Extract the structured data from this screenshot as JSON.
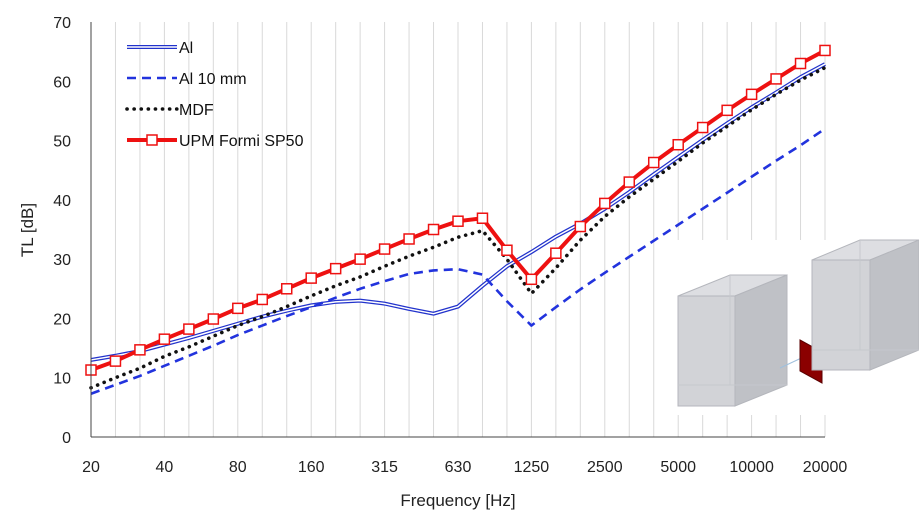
{
  "chart_data": {
    "type": "line",
    "title": "",
    "xlabel": "Frequency [Hz]",
    "ylabel": "TL [dB]",
    "x_scale": "log (one-third octave bands)",
    "x_tick_labels": [
      "20",
      "40",
      "80",
      "160",
      "315",
      "630",
      "1250",
      "2500",
      "5000",
      "10000",
      "20000"
    ],
    "ylim": [
      0,
      70
    ],
    "y_ticks": [
      0,
      10,
      20,
      30,
      40,
      50,
      60,
      70
    ],
    "grid": "vertical gridlines",
    "legend_position": "top-left",
    "categories": [
      "20",
      "25",
      "31.5",
      "40",
      "50",
      "63",
      "80",
      "100",
      "125",
      "160",
      "200",
      "250",
      "315",
      "400",
      "500",
      "630",
      "800",
      "1000",
      "1250",
      "1600",
      "2000",
      "2500",
      "3150",
      "4000",
      "5000",
      "6300",
      "8000",
      "10000",
      "12500",
      "16000",
      "20000"
    ],
    "series": [
      {
        "name": "Al",
        "color": "#2233cc",
        "style": "double-line",
        "values": [
          13,
          13.7,
          14.5,
          15.6,
          16.7,
          17.9,
          19.1,
          20.3,
          21.3,
          22.2,
          22.8,
          23.0,
          22.5,
          21.6,
          20.8,
          22.0,
          25.5,
          28.8,
          31.2,
          33.8,
          36.0,
          38.5,
          41.3,
          44.3,
          47.2,
          50.1,
          52.9,
          55.6,
          58.1,
          60.7,
          62.9
        ]
      },
      {
        "name": "Al 10 mm",
        "color": "#2233dd",
        "style": "dashed",
        "values": [
          7.3,
          8.8,
          10.3,
          12.0,
          13.7,
          15.4,
          17.2,
          18.8,
          20.4,
          21.9,
          23.5,
          25.0,
          26.3,
          27.5,
          28.1,
          28.3,
          27.4,
          22.9,
          18.8,
          21.9,
          24.9,
          27.7,
          30.4,
          33.1,
          35.8,
          38.5,
          41.2,
          43.9,
          46.6,
          49.2,
          52.0
        ]
      },
      {
        "name": "MDF",
        "color": "#111111",
        "style": "dotted",
        "values": [
          8.3,
          10.0,
          11.6,
          13.6,
          15.2,
          17.0,
          18.8,
          20.3,
          22.0,
          23.8,
          25.5,
          27.0,
          28.8,
          30.5,
          32.0,
          33.7,
          34.8,
          30.0,
          24.2,
          28.5,
          33.2,
          37.2,
          40.5,
          43.5,
          46.5,
          49.6,
          52.4,
          55.2,
          57.8,
          60.2,
          62.3
        ]
      },
      {
        "name": "UPM Formi SP50",
        "color": "#ee1111",
        "style": "solid-square-markers",
        "values": [
          11.3,
          12.8,
          14.7,
          16.5,
          18.2,
          19.9,
          21.7,
          23.2,
          25.0,
          26.8,
          28.4,
          30.0,
          31.7,
          33.4,
          35.0,
          36.4,
          36.9,
          31.5,
          26.6,
          31.0,
          35.5,
          39.4,
          43.0,
          46.3,
          49.3,
          52.2,
          55.1,
          57.8,
          60.4,
          63.0,
          65.2
        ]
      }
    ]
  }
}
